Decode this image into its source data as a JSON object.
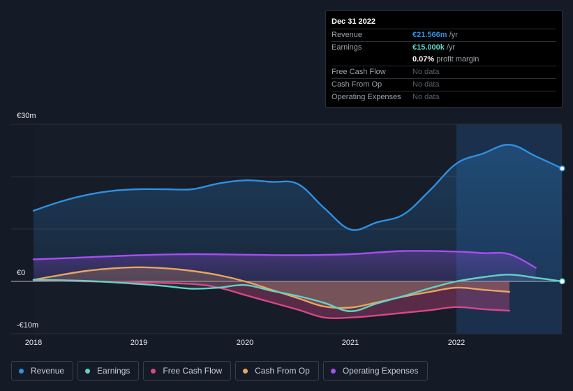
{
  "chart_data": {
    "type": "area",
    "title": "",
    "x_ticks": [
      "2018",
      "2019",
      "2020",
      "2021",
      "2022"
    ],
    "y_ticks": [
      "€30m",
      "€0",
      "-€10m"
    ],
    "ylim": [
      -10,
      30
    ],
    "xlim": [
      2018.0,
      2023.0
    ],
    "series": [
      {
        "name": "Revenue",
        "color": "#2f8fe0",
        "x": [
          2018.0,
          2018.25,
          2018.5,
          2018.75,
          2019.0,
          2019.25,
          2019.5,
          2019.75,
          2020.0,
          2020.25,
          2020.5,
          2020.75,
          2021.0,
          2021.25,
          2021.5,
          2021.75,
          2022.0,
          2022.25,
          2022.5,
          2022.75,
          2023.0
        ],
        "values": [
          13.5,
          15.2,
          16.5,
          17.3,
          17.6,
          17.6,
          17.6,
          18.7,
          19.3,
          19.0,
          18.6,
          14.0,
          9.9,
          11.3,
          12.8,
          17.4,
          22.5,
          24.4,
          26.1,
          23.9,
          21.566
        ]
      },
      {
        "name": "Earnings",
        "color": "#5fd3c7",
        "x": [
          2018.0,
          2018.5,
          2019.0,
          2019.25,
          2019.5,
          2019.75,
          2020.0,
          2020.25,
          2020.5,
          2020.75,
          2021.0,
          2021.25,
          2021.5,
          2021.75,
          2022.0,
          2022.25,
          2022.5,
          2022.75,
          2023.0
        ],
        "values": [
          0.3,
          0.1,
          -0.5,
          -0.9,
          -1.4,
          -1.2,
          -0.7,
          -1.8,
          -2.8,
          -4.1,
          -5.7,
          -4.2,
          -2.8,
          -1.3,
          0.0,
          0.8,
          1.3,
          0.7,
          0.015
        ]
      },
      {
        "name": "Free Cash Flow",
        "color": "#d64985",
        "x": [
          2018.0,
          2018.5,
          2019.0,
          2019.5,
          2019.75,
          2020.0,
          2020.25,
          2020.5,
          2020.75,
          2021.0,
          2021.25,
          2021.5,
          2021.75,
          2022.0,
          2022.25,
          2022.5
        ],
        "values": [
          0.2,
          0.0,
          -0.2,
          -0.5,
          -1.2,
          -2.6,
          -4.0,
          -5.4,
          -6.9,
          -6.9,
          -6.5,
          -6.0,
          -5.5,
          -4.9,
          -5.3,
          -5.6
        ]
      },
      {
        "name": "Cash From Op",
        "color": "#e8a65f",
        "x": [
          2018.0,
          2018.25,
          2018.5,
          2018.75,
          2019.0,
          2019.25,
          2019.5,
          2019.75,
          2020.0,
          2020.25,
          2020.5,
          2020.75,
          2021.0,
          2021.25,
          2021.5,
          2021.75,
          2022.0,
          2022.25,
          2022.5
        ],
        "values": [
          0.3,
          1.2,
          2.0,
          2.5,
          2.7,
          2.5,
          2.0,
          1.2,
          0.0,
          -1.6,
          -3.2,
          -4.8,
          -5.0,
          -4.0,
          -2.9,
          -2.0,
          -1.2,
          -1.6,
          -2.0
        ]
      },
      {
        "name": "Operating Expenses",
        "color": "#a64ef0",
        "x": [
          2018.0,
          2018.5,
          2019.0,
          2019.5,
          2020.0,
          2020.5,
          2021.0,
          2021.5,
          2022.0,
          2022.25,
          2022.5,
          2022.75
        ],
        "values": [
          4.2,
          4.6,
          5.0,
          5.2,
          5.1,
          5.0,
          5.2,
          5.8,
          5.7,
          5.4,
          5.2,
          2.6
        ]
      }
    ],
    "highlight_from": 2022.0,
    "endpoint_markers": [
      "Revenue",
      "Earnings"
    ]
  },
  "tooltip": {
    "date": "Dec 31 2022",
    "rows": [
      {
        "label": "Revenue",
        "value": "€21.566m",
        "unit": " /yr",
        "color": "#2f8fe0"
      },
      {
        "label": "Earnings",
        "value": "€15.000k",
        "unit": " /yr",
        "color": "#5fd3c7"
      },
      {
        "label": "",
        "value": "0.07%",
        "unit": " profit margin",
        "color": "#ffffff"
      },
      {
        "label": "Free Cash Flow",
        "nodata": "No data"
      },
      {
        "label": "Cash From Op",
        "nodata": "No data"
      },
      {
        "label": "Operating Expenses",
        "nodata": "No data"
      }
    ]
  },
  "legend": [
    {
      "label": "Revenue",
      "color": "#2f8fe0"
    },
    {
      "label": "Earnings",
      "color": "#5fd3c7"
    },
    {
      "label": "Free Cash Flow",
      "color": "#d64985"
    },
    {
      "label": "Cash From Op",
      "color": "#e8a65f"
    },
    {
      "label": "Operating Expenses",
      "color": "#a64ef0"
    }
  ]
}
